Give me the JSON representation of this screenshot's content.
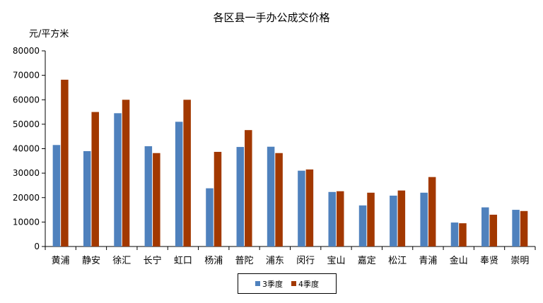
{
  "chart_data": {
    "type": "bar",
    "title": "各区县一手办公成交价格",
    "ylabel": "元/平方米",
    "xlabel": "",
    "ylim": [
      0,
      80000
    ],
    "yticks": [
      0,
      10000,
      20000,
      30000,
      40000,
      50000,
      60000,
      70000,
      80000
    ],
    "grid": false,
    "legend_position": "bottom",
    "categories": [
      "黄浦",
      "静安",
      "徐汇",
      "长宁",
      "虹口",
      "杨浦",
      "普陀",
      "浦东",
      "闵行",
      "宝山",
      "嘉定",
      "松江",
      "青浦",
      "金山",
      "奉贤",
      "崇明"
    ],
    "series": [
      {
        "name": "3季度",
        "color": "#4F81BD",
        "values": [
          41500,
          39000,
          54500,
          41000,
          51000,
          23800,
          40700,
          40800,
          31000,
          22300,
          16800,
          20800,
          22000,
          9800,
          16000,
          15000
        ]
      },
      {
        "name": "4季度",
        "color": "#A23800",
        "values": [
          68200,
          55000,
          60000,
          38200,
          60000,
          38700,
          47600,
          38200,
          31500,
          22600,
          22000,
          22900,
          28400,
          9500,
          13000,
          14500
        ]
      }
    ]
  }
}
